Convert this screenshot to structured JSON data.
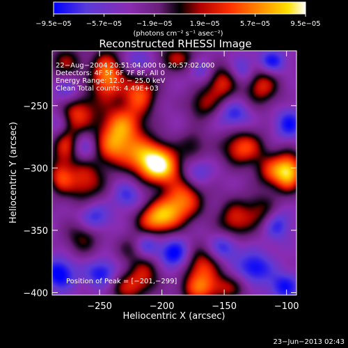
{
  "chart_data": {
    "type": "heatmap",
    "title": "Reconstructed RHESSI Image",
    "xlabel": "Heliocentric X (arcsec)",
    "ylabel": "Heliocentric Y (arcsec)",
    "xlim": [
      -288,
      -92
    ],
    "ylim": [
      -402,
      -206
    ],
    "x_ticks": [
      -250,
      -200,
      -150,
      -100
    ],
    "y_ticks": [
      -250,
      -300,
      -350,
      -400
    ],
    "x_tick_labels": [
      "−250",
      "−200",
      "−150",
      "−100"
    ],
    "y_tick_labels": [
      "−250",
      "−300",
      "−350",
      "−400"
    ],
    "colorbar": {
      "range": [
        -9.5e-05,
        9.5e-05
      ],
      "tick_values": [
        -9.5e-05,
        -5.7e-05,
        -1.9e-05,
        1.9e-05,
        5.7e-05,
        9.5e-05
      ],
      "tick_labels": [
        "−9.5e−05",
        "−5.7e−05",
        "−1.9e−05",
        "1.9e−05",
        "5.7e−05",
        "9.5e−05"
      ],
      "units": "(photons cm⁻² s⁻¹ asec⁻²)",
      "colors": [
        "#0000ff",
        "#6a35c8",
        "#8a2cb2",
        "#000000",
        "#d00000",
        "#ff4000",
        "#ff9000",
        "#ffe000",
        "#ffffff"
      ]
    },
    "info_lines": [
      "22−Aug−2004 20:51:04.000 to 20:57:02.000",
      "Detectors: 4F 5F 6F 7F 8F, All 0",
      "Energy Range: 12.0 − 25.0 keV",
      "Clean     Total counts: 4.49E+03"
    ],
    "peak_label": "Position of Peak = [−201,−299]",
    "peak": {
      "x": -201,
      "y": -299
    },
    "sources": [
      {
        "x": -201,
        "y": -299,
        "amp": 1.0,
        "sx": 11,
        "sy": 10
      },
      {
        "x": -215,
        "y": -290,
        "amp": 0.75,
        "sx": 13,
        "sy": 11
      },
      {
        "x": -232,
        "y": -266,
        "amp": 0.75,
        "sx": 12,
        "sy": 11
      },
      {
        "x": -240,
        "y": -283,
        "amp": 0.6,
        "sx": 10,
        "sy": 10
      },
      {
        "x": -244,
        "y": -226,
        "amp": 0.85,
        "sx": 9,
        "sy": 14
      },
      {
        "x": -218,
        "y": -240,
        "amp": 0.7,
        "sx": 10,
        "sy": 12
      },
      {
        "x": -268,
        "y": -255,
        "amp": 0.65,
        "sx": 11,
        "sy": 12
      },
      {
        "x": -262,
        "y": -310,
        "amp": 0.6,
        "sx": 12,
        "sy": 13
      },
      {
        "x": -278,
        "y": -282,
        "amp": 0.55,
        "sx": 8,
        "sy": 11
      },
      {
        "x": -282,
        "y": -308,
        "amp": 0.5,
        "sx": 7,
        "sy": 9
      },
      {
        "x": -182,
        "y": -325,
        "amp": 0.7,
        "sx": 11,
        "sy": 12
      },
      {
        "x": -196,
        "y": -337,
        "amp": 0.6,
        "sx": 10,
        "sy": 10
      },
      {
        "x": -208,
        "y": -342,
        "amp": 0.6,
        "sx": 10,
        "sy": 9
      },
      {
        "x": -152,
        "y": -232,
        "amp": 0.6,
        "sx": 9,
        "sy": 10
      },
      {
        "x": -120,
        "y": -234,
        "amp": 0.6,
        "sx": 10,
        "sy": 11
      },
      {
        "x": -167,
        "y": -249,
        "amp": 0.45,
        "sx": 9,
        "sy": 9
      },
      {
        "x": -135,
        "y": -284,
        "amp": 0.7,
        "sx": 12,
        "sy": 10
      },
      {
        "x": -98,
        "y": -303,
        "amp": 0.95,
        "sx": 8,
        "sy": 11
      },
      {
        "x": -112,
        "y": -303,
        "amp": 0.55,
        "sx": 9,
        "sy": 9
      },
      {
        "x": -142,
        "y": -342,
        "amp": 0.55,
        "sx": 10,
        "sy": 12
      },
      {
        "x": -120,
        "y": -335,
        "amp": 0.45,
        "sx": 10,
        "sy": 10
      },
      {
        "x": -168,
        "y": -380,
        "amp": 0.65,
        "sx": 10,
        "sy": 12
      },
      {
        "x": -172,
        "y": -398,
        "amp": 0.5,
        "sx": 10,
        "sy": 8
      },
      {
        "x": -148,
        "y": -396,
        "amp": 0.45,
        "sx": 11,
        "sy": 8
      },
      {
        "x": -226,
        "y": -395,
        "amp": 0.55,
        "sx": 12,
        "sy": 9
      },
      {
        "x": -212,
        "y": -382,
        "amp": 0.4,
        "sx": 9,
        "sy": 9
      },
      {
        "x": -263,
        "y": -355,
        "amp": 0.45,
        "sx": 10,
        "sy": 10
      },
      {
        "x": -225,
        "y": -365,
        "amp": 0.3,
        "sx": 8,
        "sy": 8
      },
      {
        "x": -277,
        "y": -215,
        "amp": 0.45,
        "sx": 10,
        "sy": 9
      },
      {
        "x": -188,
        "y": -212,
        "amp": 0.5,
        "sx": 11,
        "sy": 8
      },
      {
        "x": -175,
        "y": -282,
        "amp": 0.35,
        "sx": 8,
        "sy": 9
      },
      {
        "x": -282,
        "y": -385,
        "amp": -0.55,
        "sx": 9,
        "sy": 9
      },
      {
        "x": -248,
        "y": -385,
        "amp": -0.5,
        "sx": 9,
        "sy": 8
      },
      {
        "x": -190,
        "y": -369,
        "amp": -0.55,
        "sx": 9,
        "sy": 9
      },
      {
        "x": -212,
        "y": -362,
        "amp": -0.4,
        "sx": 7,
        "sy": 7
      },
      {
        "x": -150,
        "y": -363,
        "amp": -0.45,
        "sx": 9,
        "sy": 8
      },
      {
        "x": -126,
        "y": -380,
        "amp": -0.5,
        "sx": 10,
        "sy": 9
      },
      {
        "x": -108,
        "y": -345,
        "amp": -0.45,
        "sx": 8,
        "sy": 9
      },
      {
        "x": -98,
        "y": -265,
        "amp": -0.45,
        "sx": 8,
        "sy": 9
      },
      {
        "x": -102,
        "y": -395,
        "amp": -0.45,
        "sx": 9,
        "sy": 8
      },
      {
        "x": -112,
        "y": -215,
        "amp": -0.5,
        "sx": 8,
        "sy": 7
      },
      {
        "x": -142,
        "y": -257,
        "amp": -0.4,
        "sx": 9,
        "sy": 8
      },
      {
        "x": -135,
        "y": -222,
        "amp": -0.35,
        "sx": 7,
        "sy": 8
      },
      {
        "x": -255,
        "y": -340,
        "amp": -0.45,
        "sx": 9,
        "sy": 9
      },
      {
        "x": -275,
        "y": -240,
        "amp": -0.4,
        "sx": 8,
        "sy": 8
      },
      {
        "x": -262,
        "y": -284,
        "amp": -0.35,
        "sx": 7,
        "sy": 8
      },
      {
        "x": -283,
        "y": -265,
        "amp": -0.35,
        "sx": 6,
        "sy": 8
      },
      {
        "x": -172,
        "y": -303,
        "amp": -0.35,
        "sx": 8,
        "sy": 8
      },
      {
        "x": -218,
        "y": -215,
        "amp": -0.35,
        "sx": 8,
        "sy": 7
      },
      {
        "x": -228,
        "y": -322,
        "amp": -0.35,
        "sx": 8,
        "sy": 8
      },
      {
        "x": -168,
        "y": -222,
        "amp": -0.3,
        "sx": 7,
        "sy": 7
      }
    ]
  },
  "footer": {
    "timestamp": "23−Jun−2013 02:43"
  }
}
